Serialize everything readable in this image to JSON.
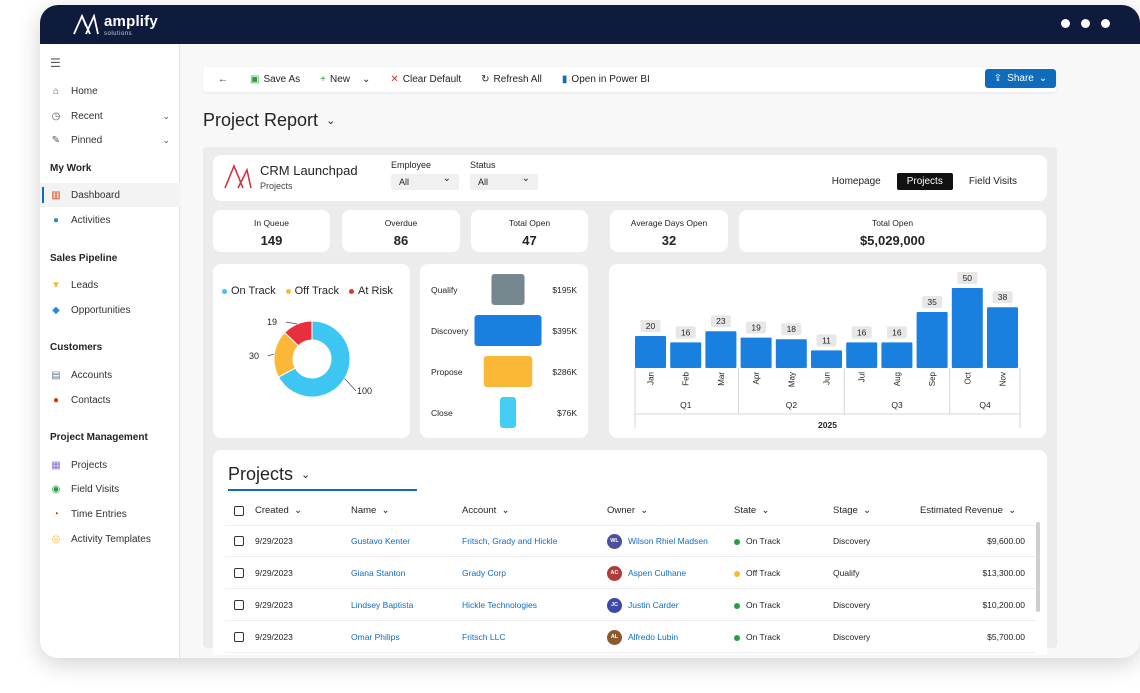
{
  "app": {
    "brand": "amplify",
    "brand_sub": "solutions"
  },
  "sidebar": {
    "items": [
      {
        "label": "Home",
        "icon": "home-icon"
      },
      {
        "label": "Recent",
        "icon": "clock-icon"
      },
      {
        "label": "Pinned",
        "icon": "pin-icon"
      }
    ],
    "sections": [
      {
        "title": "My Work",
        "items": [
          {
            "label": "Dashboard"
          },
          {
            "label": "Activities"
          }
        ]
      },
      {
        "title": "Sales Pipeline",
        "items": [
          {
            "label": "Leads"
          },
          {
            "label": "Opportunities"
          }
        ]
      },
      {
        "title": "Customers",
        "items": [
          {
            "label": "Accounts"
          },
          {
            "label": "Contacts"
          }
        ]
      },
      {
        "title": "Project Management",
        "items": [
          {
            "label": "Projects"
          },
          {
            "label": "Field Visits"
          },
          {
            "label": "Time Entries"
          },
          {
            "label": "Activity Templates"
          }
        ]
      }
    ]
  },
  "toolbar": {
    "back": "←",
    "save_as": "Save As",
    "new": "New",
    "clear_default": "Clear Default",
    "refresh_all": "Refresh All",
    "open_power_bi": "Open in Power BI",
    "share": "Share"
  },
  "page": {
    "title": "Project Report"
  },
  "report": {
    "app_name": "CRM Launchpad",
    "app_sub": "Projects",
    "filters": [
      {
        "label": "Employee",
        "value": "All"
      },
      {
        "label": "Status",
        "value": "All"
      }
    ],
    "tabs": [
      "Homepage",
      "Projects",
      "Field Visits"
    ],
    "active_tab": "Projects",
    "kpis": [
      {
        "label": "In Queue",
        "value": "149"
      },
      {
        "label": "Overdue",
        "value": "86"
      },
      {
        "label": "Total Open",
        "value": "47"
      },
      {
        "label": "Average Days Open",
        "value": "32"
      },
      {
        "label": "Total Open",
        "value": "$5,029,000"
      }
    ]
  },
  "chart_data": [
    {
      "type": "pie",
      "title": "",
      "legend": [
        "On Track",
        "Off Track",
        "At Risk"
      ],
      "categories": [
        "On Track",
        "Off Track",
        "At Risk"
      ],
      "values": [
        100,
        30,
        19
      ],
      "colors": [
        "#3ec6f2",
        "#fbb737",
        "#e8303d"
      ]
    },
    {
      "type": "bar",
      "title": "",
      "categories": [
        "Qualify",
        "Discovery",
        "Propose",
        "Close"
      ],
      "values": [
        195,
        395,
        286,
        76
      ],
      "labels": [
        "$195K",
        "$395K",
        "$286K",
        "$76K"
      ],
      "colors": [
        "#76878f",
        "#1a80e0",
        "#fbb737",
        "#44cdf5"
      ]
    },
    {
      "type": "bar",
      "title": "",
      "categories": [
        "Jan",
        "Feb",
        "Mar",
        "Apr",
        "May",
        "Jun",
        "Jul",
        "Aug",
        "Sep",
        "Oct",
        "Nov"
      ],
      "values": [
        20,
        16,
        23,
        19,
        18,
        11,
        16,
        16,
        35,
        50,
        38
      ],
      "quarters": [
        "Q1",
        "Q2",
        "Q3",
        "Q4"
      ],
      "year": "2025",
      "color": "#1a80e0"
    }
  ],
  "projects": {
    "title": "Projects",
    "columns": [
      "Created",
      "Name",
      "Account",
      "Owner",
      "State",
      "Stage",
      "Estimated Revenue"
    ],
    "rows": [
      {
        "created": "9/29/2023",
        "name": "Gustavo Kenter",
        "account": "Fritsch, Grady and Hickle",
        "owner": "Wilson Rhiel Madsen",
        "initials": "WL",
        "av_color": "#4b4f9c",
        "state": "On Track",
        "state_color": "#22a043",
        "stage": "Discovery",
        "revenue": "$9,600.00"
      },
      {
        "created": "9/29/2023",
        "name": "Giana Stanton",
        "account": "Grady Corp",
        "owner": "Aspen Culhane",
        "initials": "AC",
        "av_color": "#b23a3a",
        "state": "Off Track",
        "state_color": "#fbb737",
        "stage": "Qualify",
        "revenue": "$13,300.00"
      },
      {
        "created": "9/29/2023",
        "name": "Lindsey Baptista",
        "account": "Hickle Technologies",
        "owner": "Justin Carder",
        "initials": "JC",
        "av_color": "#3b4aa8",
        "state": "On Track",
        "state_color": "#22a043",
        "stage": "Discovery",
        "revenue": "$10,200.00"
      },
      {
        "created": "9/29/2023",
        "name": "Omar Philips",
        "account": "Fritsch LLC",
        "owner": "Alfredo Lubin",
        "initials": "AL",
        "av_color": "#8a5a2b",
        "state": "On Track",
        "state_color": "#22a043",
        "stage": "Discovery",
        "revenue": "$5,700.00"
      }
    ]
  }
}
